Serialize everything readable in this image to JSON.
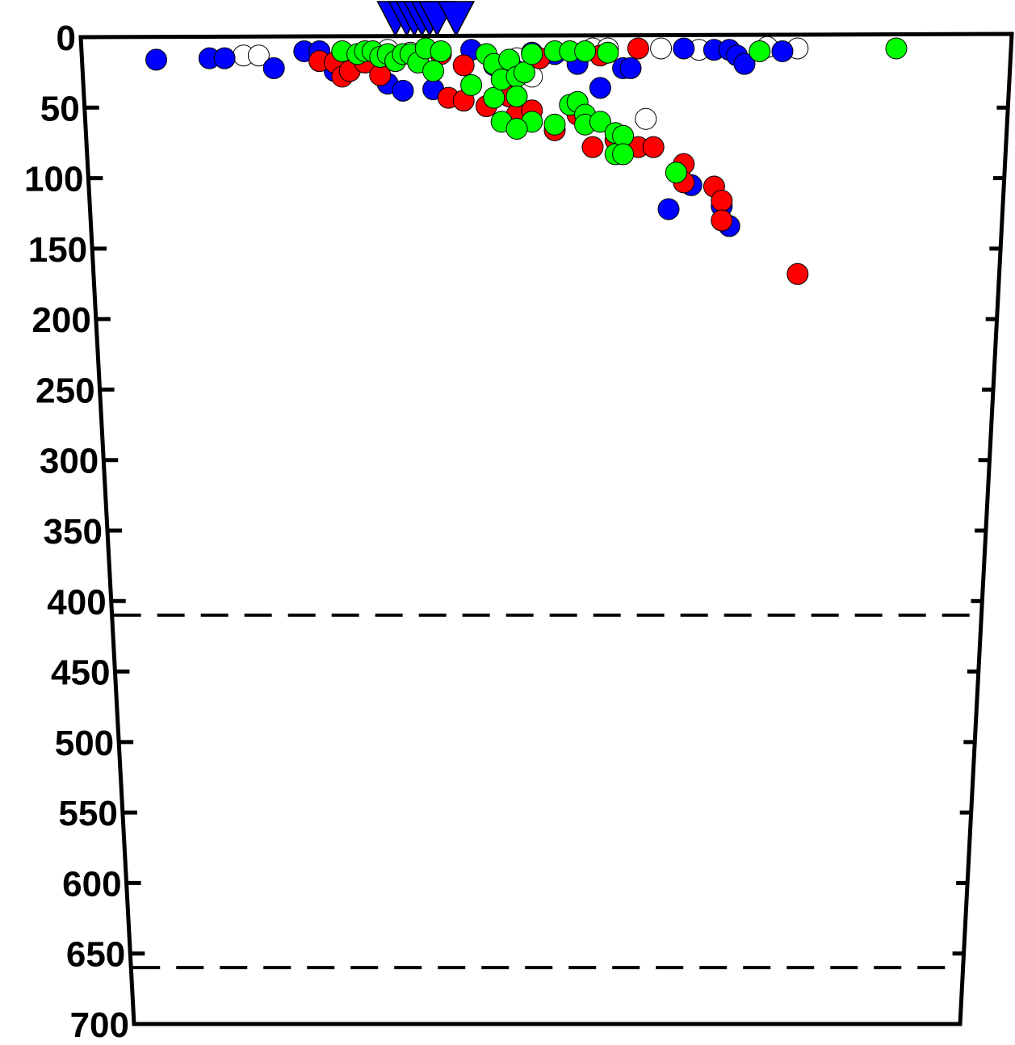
{
  "chart_data": {
    "type": "scatter",
    "title": "",
    "xlabel": "",
    "ylabel": "",
    "ylim": [
      0,
      700
    ],
    "y_inverted": true,
    "xlim": [
      0,
      1
    ],
    "y_ticks": [
      0,
      50,
      100,
      150,
      200,
      250,
      300,
      350,
      400,
      450,
      500,
      550,
      600,
      650,
      700
    ],
    "grid": false,
    "legend": "none",
    "reference_lines": [
      {
        "style": "dashed",
        "y": 410
      },
      {
        "style": "dashed",
        "y": 660
      }
    ],
    "stations": {
      "marker": "inverted-triangle",
      "color": "#0000ff",
      "x": [
        0.34,
        0.355,
        0.365,
        0.375,
        0.385,
        0.395,
        0.42
      ],
      "depth": [
        0,
        0,
        0,
        0,
        0,
        0,
        0
      ]
    },
    "series": [
      {
        "color": "#ffffff",
        "points": [
          [
            0.14,
            13
          ],
          [
            0.16,
            13
          ],
          [
            0.33,
            9
          ],
          [
            0.36,
            11
          ],
          [
            0.38,
            12
          ],
          [
            0.5,
            15
          ],
          [
            0.52,
            28
          ],
          [
            0.6,
            8
          ],
          [
            0.62,
            8
          ],
          [
            0.69,
            8
          ],
          [
            0.74,
            9
          ],
          [
            0.83,
            7
          ],
          [
            0.87,
            8
          ],
          [
            0.67,
            58
          ]
        ]
      },
      {
        "color": "#0000ff",
        "points": [
          [
            0.025,
            16
          ],
          [
            0.095,
            15
          ],
          [
            0.115,
            15
          ],
          [
            0.18,
            22
          ],
          [
            0.22,
            10
          ],
          [
            0.24,
            10
          ],
          [
            0.26,
            24
          ],
          [
            0.33,
            33
          ],
          [
            0.35,
            38
          ],
          [
            0.39,
            37
          ],
          [
            0.44,
            9
          ],
          [
            0.47,
            20
          ],
          [
            0.5,
            24
          ],
          [
            0.52,
            11
          ],
          [
            0.55,
            12
          ],
          [
            0.58,
            19
          ],
          [
            0.61,
            36
          ],
          [
            0.64,
            22
          ],
          [
            0.65,
            22
          ],
          [
            0.72,
            8
          ],
          [
            0.76,
            9
          ],
          [
            0.78,
            9
          ],
          [
            0.79,
            13
          ],
          [
            0.8,
            19
          ],
          [
            0.85,
            10
          ],
          [
            0.7,
            122
          ],
          [
            0.73,
            105
          ],
          [
            0.77,
            120
          ],
          [
            0.78,
            134
          ]
        ]
      },
      {
        "color": "#ff0000",
        "points": [
          [
            0.24,
            17
          ],
          [
            0.26,
            18
          ],
          [
            0.27,
            28
          ],
          [
            0.28,
            24
          ],
          [
            0.3,
            18
          ],
          [
            0.32,
            27
          ],
          [
            0.41,
            43
          ],
          [
            0.43,
            45
          ],
          [
            0.46,
            49
          ],
          [
            0.49,
            42
          ],
          [
            0.5,
            55
          ],
          [
            0.52,
            52
          ],
          [
            0.55,
            66
          ],
          [
            0.58,
            55
          ],
          [
            0.6,
            78
          ],
          [
            0.63,
            73
          ],
          [
            0.66,
            78
          ],
          [
            0.68,
            78
          ],
          [
            0.72,
            90
          ],
          [
            0.72,
            103
          ],
          [
            0.76,
            106
          ],
          [
            0.77,
            116
          ],
          [
            0.77,
            130
          ],
          [
            0.87,
            168
          ],
          [
            0.66,
            8
          ],
          [
            0.61,
            13
          ],
          [
            0.4,
            12
          ],
          [
            0.43,
            20
          ],
          [
            0.53,
            15
          ]
        ]
      },
      {
        "color": "#00ff00",
        "points": [
          [
            0.27,
            10
          ],
          [
            0.29,
            12
          ],
          [
            0.3,
            10
          ],
          [
            0.31,
            10
          ],
          [
            0.32,
            14
          ],
          [
            0.33,
            12
          ],
          [
            0.34,
            17
          ],
          [
            0.35,
            12
          ],
          [
            0.36,
            12
          ],
          [
            0.37,
            18
          ],
          [
            0.38,
            8
          ],
          [
            0.39,
            24
          ],
          [
            0.4,
            10
          ],
          [
            0.44,
            34
          ],
          [
            0.46,
            12
          ],
          [
            0.47,
            19
          ],
          [
            0.47,
            43
          ],
          [
            0.48,
            30
          ],
          [
            0.49,
            16
          ],
          [
            0.5,
            28
          ],
          [
            0.51,
            25
          ],
          [
            0.5,
            42
          ],
          [
            0.52,
            12
          ],
          [
            0.52,
            60
          ],
          [
            0.55,
            62
          ],
          [
            0.57,
            48
          ],
          [
            0.58,
            46
          ],
          [
            0.59,
            55
          ],
          [
            0.59,
            62
          ],
          [
            0.61,
            60
          ],
          [
            0.63,
            68
          ],
          [
            0.63,
            83
          ],
          [
            0.64,
            70
          ],
          [
            0.64,
            83
          ],
          [
            0.55,
            10
          ],
          [
            0.57,
            10
          ],
          [
            0.59,
            10
          ],
          [
            0.62,
            11
          ],
          [
            0.82,
            10
          ],
          [
            1.0,
            8
          ],
          [
            0.71,
            96
          ],
          [
            0.48,
            60
          ],
          [
            0.5,
            65
          ]
        ]
      }
    ]
  }
}
